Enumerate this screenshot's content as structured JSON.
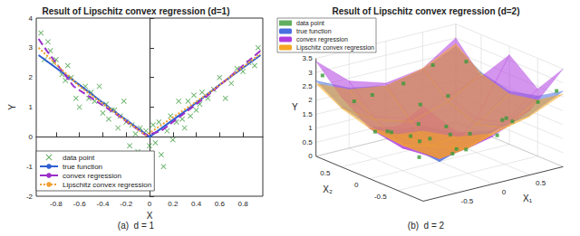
{
  "chart_data": [
    {
      "type": "line",
      "title": "Result of Lipschitz convex regression (d=1)",
      "caption": "(a)  d = 1",
      "x_label": "X",
      "y_label": "Y",
      "xlim": [
        -0.97,
        0.97
      ],
      "xticks": [
        -0.8,
        -0.6,
        -0.4,
        -0.2,
        0,
        0.2,
        0.4,
        0.6,
        0.8
      ],
      "ylim": [
        -2,
        4
      ],
      "yticks": [
        -2,
        -1,
        0,
        1,
        2,
        3,
        4
      ],
      "grid": false,
      "legend": "lower left",
      "series": [
        {
          "name": "data point",
          "type": "scatter",
          "color": "#3a9a3a",
          "marker": "x",
          "x": [
            -0.93,
            -0.9,
            -0.87,
            -0.85,
            -0.82,
            -0.8,
            -0.75,
            -0.72,
            -0.7,
            -0.67,
            -0.63,
            -0.6,
            -0.55,
            -0.52,
            -0.5,
            -0.47,
            -0.43,
            -0.4,
            -0.37,
            -0.35,
            -0.32,
            -0.3,
            -0.27,
            -0.25,
            -0.22,
            -0.2,
            -0.17,
            -0.15,
            -0.12,
            -0.1,
            -0.08,
            -0.05,
            -0.03,
            0.0,
            0.03,
            0.05,
            0.08,
            0.1,
            0.12,
            0.15,
            0.18,
            0.2,
            0.23,
            0.25,
            0.28,
            0.3,
            0.33,
            0.35,
            0.38,
            0.4,
            0.43,
            0.45,
            0.5,
            0.55,
            0.6,
            0.65,
            0.7,
            0.75,
            0.8,
            0.85,
            0.9,
            0.93
          ],
          "values": [
            3.5,
            2.6,
            3.2,
            2.9,
            2.5,
            2.6,
            2.1,
            1.9,
            2.4,
            2.0,
            1.3,
            1.0,
            1.7,
            1.3,
            1.5,
            1.2,
            1.7,
            0.8,
            1.1,
            0.6,
            0.9,
            0.9,
            0.3,
            0.7,
            1.2,
            0.5,
            -0.3,
            0.4,
            0.1,
            -0.5,
            0.3,
            -0.9,
            0.2,
            -0.3,
            0.4,
            -0.2,
            0.5,
            -0.6,
            -1.0,
            0.2,
            0.7,
            -0.1,
            0.5,
            1.2,
            0.6,
            0.3,
            1.2,
            0.7,
            1.4,
            0.9,
            1.1,
            1.5,
            1.3,
            1.6,
            2.0,
            1.3,
            1.8,
            2.3,
            2.2,
            2.5,
            2.4,
            3.0
          ]
        },
        {
          "name": "true function",
          "type": "line",
          "color": "#2f5fd0",
          "line_style": "solid",
          "x": [
            -0.95,
            -0.6,
            -0.3,
            0,
            0.3,
            0.6,
            0.95
          ],
          "values": [
            2.75,
            1.75,
            0.85,
            0.0,
            0.85,
            1.75,
            2.75
          ]
        },
        {
          "name": "convex regression",
          "type": "line",
          "color": "#9b2fc9",
          "line_style": "dashed",
          "x": [
            -0.95,
            -0.88,
            -0.65,
            -0.3,
            -0.03,
            0.1,
            0.5,
            0.95
          ],
          "values": [
            3.3,
            2.9,
            1.7,
            0.8,
            0.05,
            0.2,
            1.4,
            2.9
          ]
        },
        {
          "name": "Lipschitz convex regression",
          "type": "line",
          "color": "#f0a030",
          "line_style": "dotted",
          "x": [
            -0.95,
            -0.6,
            -0.03,
            0.5,
            0.95
          ],
          "values": [
            3.0,
            1.7,
            0.05,
            1.45,
            2.8
          ]
        }
      ]
    },
    {
      "type": "surface3d",
      "title": "Result of Lipschitz convex regression (d=2)",
      "caption": "(b)  d = 2",
      "x1_label": "X₁",
      "x2_label": "X₂",
      "y_label": "Y",
      "x1lim": [
        -0.95,
        0.95
      ],
      "x1ticks": [
        -0.5,
        0,
        0.5
      ],
      "x2lim": [
        -0.95,
        0.95
      ],
      "x2ticks": [
        -0.5,
        0,
        0.5
      ],
      "ylim": [
        0,
        3.5
      ],
      "yticks": [
        0,
        0.5,
        1,
        1.5,
        2,
        2.5,
        3,
        3.5
      ],
      "grid": true,
      "legend": "upper left",
      "points": {
        "name": "data point",
        "color": "#3a9a3a",
        "marker": "square",
        "x1": [
          -0.9,
          -0.7,
          -0.5,
          -0.3,
          -0.1,
          0.1,
          0.3,
          0.5,
          0.7,
          0.9,
          -0.8,
          -0.6,
          -0.2,
          0.2,
          0.4,
          0.6,
          0.8,
          -0.4,
          0.0,
          -0.9,
          0.9,
          0.1,
          -0.5,
          0.3,
          0.6,
          -0.2,
          0.2,
          -0.7
        ],
        "x2": [
          -0.8,
          0.6,
          -0.3,
          0.8,
          -0.6,
          0.3,
          -0.9,
          0.5,
          -0.2,
          0.7,
          0.1,
          -0.9,
          0.1,
          0.6,
          -0.5,
          0.9,
          -0.7,
          0.4,
          -0.3,
          0.9,
          -0.9,
          -0.1,
          0.2,
          0.2,
          -0.4,
          -0.8,
          0.9,
          -0.4
        ],
        "values": [
          2.6,
          2.1,
          1.3,
          1.9,
          1.0,
          0.5,
          2.0,
          1.6,
          1.2,
          2.4,
          1.5,
          2.4,
          0.2,
          1.4,
          1.1,
          2.3,
          2.2,
          1.0,
          0.7,
          2.9,
          2.7,
          0.3,
          1.2,
          0.6,
          1.5,
          1.8,
          1.9,
          1.7
        ]
      },
      "grid_x1": [
        -0.95,
        -0.5,
        0,
        0.5,
        0.95
      ],
      "grid_x2": [
        -0.95,
        -0.5,
        0,
        0.5,
        0.95
      ],
      "surfaces": [
        {
          "name": "true function",
          "color": "#4a6fe0",
          "values": [
            [
              2.7,
              2.15,
              1.9,
              2.15,
              2.7
            ],
            [
              2.15,
              1.4,
              1.0,
              1.4,
              2.15
            ],
            [
              1.9,
              1.0,
              0.0,
              1.0,
              1.9
            ],
            [
              2.15,
              1.4,
              1.0,
              1.4,
              2.15
            ],
            [
              2.7,
              2.15,
              1.9,
              2.15,
              2.7
            ]
          ]
        },
        {
          "name": "convex regression",
          "color": "#b03ee0",
          "values": [
            [
              3.4,
              2.2,
              1.7,
              2.3,
              3.5
            ],
            [
              2.3,
              1.2,
              0.9,
              1.5,
              2.4
            ],
            [
              1.8,
              0.8,
              0.1,
              1.2,
              3.2
            ],
            [
              2.5,
              1.5,
              1.1,
              1.6,
              2.0
            ],
            [
              3.4,
              2.4,
              2.0,
              2.2,
              3.0
            ]
          ]
        },
        {
          "name": "Lipschitz convex regression",
          "color": "#f5a623",
          "values": [
            [
              2.5,
              2.0,
              1.8,
              2.1,
              2.6
            ],
            [
              2.0,
              1.3,
              0.9,
              1.3,
              2.0
            ],
            [
              1.8,
              0.9,
              0.1,
              1.0,
              1.8
            ],
            [
              2.1,
              1.4,
              1.0,
              1.4,
              2.1
            ],
            [
              2.6,
              2.1,
              1.9,
              2.2,
              2.8
            ]
          ]
        }
      ]
    }
  ]
}
